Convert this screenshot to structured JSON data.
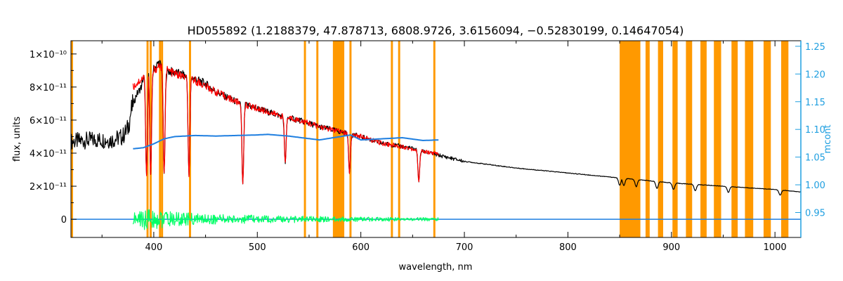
{
  "chart_data": {
    "type": "line",
    "title": "HD055892   (1.2188379, 47.878713, 6808.9726, 3.6156094, −0.52830199, 0.14647054)",
    "xlabel": "wavelength, nm",
    "ylabel": "flux, units",
    "y2label": "mcont",
    "xlim": [
      320,
      1025
    ],
    "ylim": [
      -1.1e-11,
      1.08e-10
    ],
    "y2lim": [
      0.905,
      1.26
    ],
    "x_ticks": [
      "400",
      "500",
      "600",
      "700",
      "800",
      "900",
      "1000"
    ],
    "x_tick_values": [
      400,
      500,
      600,
      700,
      800,
      900,
      1000
    ],
    "y_ticks": [
      "0",
      "2×10⁻¹¹",
      "4×10⁻¹¹",
      "6×10⁻¹¹",
      "8×10⁻¹¹",
      "1×10⁻¹⁰"
    ],
    "y_tick_values": [
      0,
      2e-11,
      4e-11,
      6e-11,
      8e-11,
      1e-10
    ],
    "y2_ticks": [
      "0.95",
      "1.00",
      "1.05",
      "1.10",
      "1.15",
      "1.20",
      "1.25"
    ],
    "y2_tick_values": [
      0.95,
      1.0,
      1.05,
      1.1,
      1.15,
      1.2,
      1.25
    ],
    "grid": false,
    "masked_bands_nm": [
      [
        320,
        322
      ],
      [
        393,
        395
      ],
      [
        396,
        398
      ],
      [
        405,
        407
      ],
      [
        407,
        409
      ],
      [
        434,
        436
      ],
      [
        545,
        547
      ],
      [
        557,
        559
      ],
      [
        573,
        584
      ],
      [
        589,
        591
      ],
      [
        629,
        631
      ],
      [
        636,
        638
      ],
      [
        670,
        672
      ],
      [
        850,
        870
      ],
      [
        875,
        879
      ],
      [
        887,
        892
      ],
      [
        901,
        906
      ],
      [
        914,
        920
      ],
      [
        928,
        934
      ],
      [
        941,
        948
      ],
      [
        958,
        964
      ],
      [
        971,
        979
      ],
      [
        989,
        996
      ],
      [
        1006,
        1013
      ]
    ],
    "series": [
      {
        "role": "observed",
        "color": "#000000",
        "x": [
          320,
          340,
          360,
          370,
          375,
          378,
          383,
          388,
          390,
          395,
          400,
          405,
          410,
          420,
          430,
          435,
          440,
          450,
          460,
          470,
          480,
          486,
          490,
          500,
          520,
          540,
          560,
          580,
          600,
          620,
          640,
          656,
          660,
          680,
          700,
          750,
          800,
          850,
          900,
          950,
          1000,
          1025
        ],
        "y": [
          4.7e-11,
          4.8e-11,
          4.8e-11,
          5e-11,
          5.5e-11,
          6.5e-11,
          7.5e-11,
          8e-11,
          8.6e-11,
          9e-11,
          9.1e-11,
          9.5e-11,
          9e-11,
          8.9e-11,
          8.7e-11,
          8.6e-11,
          8.5e-11,
          8.2e-11,
          7.7e-11,
          7.4e-11,
          7.1e-11,
          7e-11,
          6.9e-11,
          6.7e-11,
          6.3e-11,
          6e-11,
          5.6e-11,
          5.3e-11,
          5e-11,
          4.6e-11,
          4.4e-11,
          4.2e-11,
          4.1e-11,
          3.8e-11,
          3.5e-11,
          3.1e-11,
          2.8e-11,
          2.5e-11,
          2.2e-11,
          2e-11,
          1.8e-11,
          1.65e-11
        ]
      },
      {
        "role": "model",
        "color": "#ff0000",
        "x": [
          380,
          390,
          400,
          405,
          420,
          440,
          460,
          480,
          500,
          520,
          540,
          560,
          580,
          600,
          620,
          640,
          660,
          675
        ],
        "y": [
          8e-11,
          8.6e-11,
          9e-11,
          9.3e-11,
          8.8e-11,
          8.4e-11,
          7.7e-11,
          7.1e-11,
          6.7e-11,
          6.3e-11,
          6e-11,
          5.6e-11,
          5.3e-11,
          5e-11,
          4.6e-11,
          4.4e-11,
          4.1e-11,
          3.95e-11
        ]
      },
      {
        "role": "continuum-correction",
        "axis": "right",
        "color": "#1f7fe0",
        "x": [
          380,
          390,
          400,
          410,
          420,
          440,
          460,
          480,
          500,
          510,
          530,
          560,
          580,
          590,
          600,
          620,
          640,
          660,
          675
        ],
        "y": [
          1.065,
          1.067,
          1.074,
          1.083,
          1.087,
          1.089,
          1.088,
          1.089,
          1.09,
          1.091,
          1.088,
          1.081,
          1.087,
          1.09,
          1.081,
          1.083,
          1.085,
          1.08,
          1.081
        ]
      },
      {
        "role": "residual",
        "color": "#1f7fe0",
        "x": [
          320,
          500,
          700,
          900,
          1025
        ],
        "y": [
          0,
          0,
          0,
          0,
          0
        ]
      },
      {
        "role": "residual-fit",
        "color": "#00ff66",
        "x": [
          380,
          390,
          400,
          410,
          430,
          460,
          500,
          540,
          580,
          620,
          675
        ],
        "y": [
          4e-12,
          7e-12,
          6e-12,
          5e-12,
          4e-12,
          3e-12,
          2.5e-12,
          2e-12,
          1.5e-12,
          1.2e-12,
          1e-12
        ]
      }
    ],
    "absorption_lines_nm": [
      393,
      397,
      410,
      434,
      486,
      527,
      589,
      656,
      850,
      854,
      866,
      886,
      902,
      923,
      955,
      1005
    ],
    "colors": {
      "observed": "#000000",
      "model": "#ff0000",
      "mcont": "#1f7fe0",
      "residual": "#00ff66",
      "mask": "#ff9900",
      "right_axis": "#1f9fe0"
    }
  }
}
